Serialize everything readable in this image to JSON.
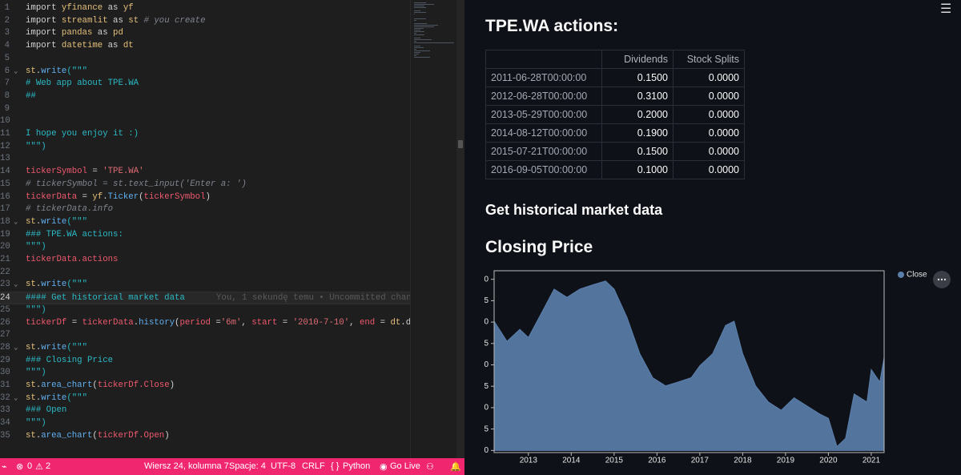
{
  "editor": {
    "lines": [
      {
        "num": 1,
        "fold": false,
        "segs": [
          [
            "import ",
            "k"
          ],
          [
            "yfinance",
            "m"
          ],
          [
            " as ",
            "k"
          ],
          [
            "yf",
            "m"
          ]
        ]
      },
      {
        "num": 2,
        "segs": [
          [
            "import ",
            "k"
          ],
          [
            "streamlit",
            "m"
          ],
          [
            " as ",
            "k"
          ],
          [
            "st",
            "m"
          ],
          [
            " # you create",
            "c"
          ]
        ]
      },
      {
        "num": 3,
        "segs": [
          [
            "import ",
            "k"
          ],
          [
            "pandas",
            "m"
          ],
          [
            " as ",
            "k"
          ],
          [
            "pd",
            "m"
          ]
        ]
      },
      {
        "num": 4,
        "segs": [
          [
            "import ",
            "k"
          ],
          [
            "datetime",
            "m"
          ],
          [
            " as ",
            "k"
          ],
          [
            "dt",
            "m"
          ]
        ]
      },
      {
        "num": 5,
        "segs": []
      },
      {
        "num": 6,
        "fold": true,
        "segs": [
          [
            "st",
            "m"
          ],
          [
            ".",
            "k"
          ],
          [
            "write",
            "f"
          ],
          [
            "(\"\"\"",
            "s"
          ]
        ]
      },
      {
        "num": 7,
        "segs": [
          [
            "# Web app about TPE.WA",
            "s"
          ]
        ]
      },
      {
        "num": 8,
        "segs": [
          [
            "##",
            "s"
          ]
        ]
      },
      {
        "num": 9,
        "segs": []
      },
      {
        "num": 10,
        "segs": []
      },
      {
        "num": 11,
        "segs": [
          [
            "I hope you enjoy it :)",
            "s"
          ]
        ]
      },
      {
        "num": 12,
        "segs": [
          [
            "\"\"\")",
            "s"
          ]
        ]
      },
      {
        "num": 13,
        "segs": []
      },
      {
        "num": 14,
        "segs": [
          [
            "tickerSymbol",
            "v"
          ],
          [
            " = ",
            "k"
          ],
          [
            "'TPE.WA'",
            "q"
          ]
        ]
      },
      {
        "num": 15,
        "segs": [
          [
            "# tickerSymbol = st.text_input('Enter a: ')",
            "c"
          ]
        ]
      },
      {
        "num": 16,
        "segs": [
          [
            "tickerData",
            "v"
          ],
          [
            " = ",
            "k"
          ],
          [
            "yf",
            "m"
          ],
          [
            ".",
            "k"
          ],
          [
            "Ticker",
            "f"
          ],
          [
            "(",
            "k"
          ],
          [
            "tickerSymbol",
            "v"
          ],
          [
            ")",
            "k"
          ]
        ]
      },
      {
        "num": 17,
        "segs": [
          [
            "# tickerData.info",
            "c"
          ]
        ]
      },
      {
        "num": 18,
        "fold": true,
        "segs": [
          [
            "st",
            "m"
          ],
          [
            ".",
            "k"
          ],
          [
            "write",
            "f"
          ],
          [
            "(\"\"\"",
            "s"
          ]
        ]
      },
      {
        "num": 19,
        "segs": [
          [
            "### TPE.WA actions:",
            "s"
          ]
        ]
      },
      {
        "num": 20,
        "segs": [
          [
            "\"\"\")",
            "s"
          ]
        ]
      },
      {
        "num": 21,
        "segs": [
          [
            "tickerData",
            "v"
          ],
          [
            ".actions",
            "v"
          ]
        ]
      },
      {
        "num": 22,
        "segs": []
      },
      {
        "num": 23,
        "fold": true,
        "segs": [
          [
            "st",
            "m"
          ],
          [
            ".",
            "k"
          ],
          [
            "write",
            "f"
          ],
          [
            "(\"\"\"",
            "s"
          ]
        ]
      },
      {
        "num": 24,
        "current": true,
        "segs": [
          [
            "#### Get historical market data",
            "s"
          ]
        ],
        "blame": "You, 1 sekundę temu • Uncommitted chan"
      },
      {
        "num": 25,
        "segs": [
          [
            "\"\"\")",
            "s"
          ]
        ]
      },
      {
        "num": 26,
        "segs": [
          [
            "tickerDf",
            "v"
          ],
          [
            " = ",
            "k"
          ],
          [
            "tickerData",
            "v"
          ],
          [
            ".",
            "k"
          ],
          [
            "history",
            "f"
          ],
          [
            "(",
            "k"
          ],
          [
            "period",
            "v"
          ],
          [
            " =",
            "k"
          ],
          [
            "'6m'",
            "q"
          ],
          [
            ", ",
            "k"
          ],
          [
            "start",
            "v"
          ],
          [
            " = ",
            "k"
          ],
          [
            "'2010-7-10'",
            "q"
          ],
          [
            ", ",
            "k"
          ],
          [
            "end",
            "v"
          ],
          [
            " = ",
            "k"
          ],
          [
            "dt",
            "m"
          ],
          [
            ".da",
            "k"
          ]
        ]
      },
      {
        "num": 27,
        "segs": []
      },
      {
        "num": 28,
        "fold": true,
        "segs": [
          [
            "st",
            "m"
          ],
          [
            ".",
            "k"
          ],
          [
            "write",
            "f"
          ],
          [
            "(\"\"\"",
            "s"
          ]
        ]
      },
      {
        "num": 29,
        "segs": [
          [
            "### Closing Price",
            "s"
          ]
        ]
      },
      {
        "num": 30,
        "segs": [
          [
            "\"\"\")",
            "s"
          ]
        ]
      },
      {
        "num": 31,
        "segs": [
          [
            "st",
            "m"
          ],
          [
            ".",
            "k"
          ],
          [
            "area_chart",
            "f"
          ],
          [
            "(",
            "k"
          ],
          [
            "tickerDf",
            "v"
          ],
          [
            ".Close",
            "v"
          ],
          [
            ")",
            "k"
          ]
        ]
      },
      {
        "num": 32,
        "fold": true,
        "segs": [
          [
            "st",
            "m"
          ],
          [
            ".",
            "k"
          ],
          [
            "write",
            "f"
          ],
          [
            "(\"\"\"",
            "s"
          ]
        ]
      },
      {
        "num": 33,
        "segs": [
          [
            "### Open",
            "s"
          ]
        ]
      },
      {
        "num": 34,
        "segs": [
          [
            "\"\"\")",
            "s"
          ]
        ]
      },
      {
        "num": 35,
        "segs": [
          [
            "st",
            "m"
          ],
          [
            ".",
            "k"
          ],
          [
            "area_chart",
            "f"
          ],
          [
            "(",
            "k"
          ],
          [
            "tickerDf",
            "v"
          ],
          [
            ".Open",
            "v"
          ],
          [
            ")",
            "k"
          ]
        ]
      }
    ]
  },
  "status": {
    "errors": 0,
    "warnings": 2,
    "position": "Wiersz 24, kolumna 7",
    "spaces": "Spacje: 4",
    "encoding": "UTF-8",
    "eol": "CRLF",
    "language": "Python",
    "live": "Go Live"
  },
  "app": {
    "actions_heading": "TPE.WA actions:",
    "table": {
      "columns": [
        "Dividends",
        "Stock Splits"
      ],
      "rows": [
        [
          "2011-06-28T00:00:00",
          "0.1500",
          "0.0000"
        ],
        [
          "2012-06-28T00:00:00",
          "0.3100",
          "0.0000"
        ],
        [
          "2013-05-29T00:00:00",
          "0.2000",
          "0.0000"
        ],
        [
          "2014-08-12T00:00:00",
          "0.1900",
          "0.0000"
        ],
        [
          "2015-07-21T00:00:00",
          "0.1500",
          "0.0000"
        ],
        [
          "2016-09-05T00:00:00",
          "0.1000",
          "0.0000"
        ]
      ]
    },
    "history_heading": "Get historical market data",
    "closing_heading": "Closing Price"
  },
  "chart_data": {
    "type": "area",
    "color": "#5b7fab",
    "series": [
      {
        "name": "Close",
        "color": "#5b7fab",
        "values": [
          30.2,
          25.5,
          28.3,
          26.4,
          32,
          37.7,
          35.8,
          37.7,
          38.7,
          39.6,
          37.7,
          31.1,
          22.6,
          17,
          15.1,
          16,
          17,
          19.8,
          22.6,
          29.2,
          30.2,
          22.6,
          15.1,
          11.3,
          9.4,
          12.3,
          10.4,
          8.5,
          7.5,
          0.9,
          2.8,
          13.2,
          11.3,
          18.9,
          16,
          21.7
        ]
      }
    ],
    "x": [
      2012.2,
      2012.5,
      2012.8,
      2013.0,
      2013.3,
      2013.6,
      2013.9,
      2014.2,
      2014.5,
      2014.8,
      2015.0,
      2015.3,
      2015.6,
      2015.9,
      2016.2,
      2016.5,
      2016.8,
      2017.0,
      2017.3,
      2017.6,
      2017.8,
      2018.0,
      2018.3,
      2018.6,
      2018.9,
      2019.2,
      2019.5,
      2019.8,
      2020.0,
      2020.2,
      2020.4,
      2020.6,
      2020.9,
      2021.0,
      2021.2,
      2021.3
    ],
    "xlim": [
      2012.2,
      2021.3
    ],
    "xticks": [
      2013,
      2014,
      2015,
      2016,
      2017,
      2018,
      2019,
      2020,
      2021
    ],
    "ylim": [
      -0.5,
      42
    ],
    "yticks": [
      0,
      5,
      {
        "value": 10,
        "label": "0"
      },
      {
        "value": 15,
        "label": "5"
      },
      {
        "value": 20,
        "label": "0"
      },
      {
        "value": 25,
        "label": "5"
      },
      {
        "value": 30,
        "label": "0"
      },
      {
        "value": 35,
        "label": "5"
      },
      {
        "value": 40,
        "label": "0"
      }
    ],
    "legend": "top-right"
  }
}
